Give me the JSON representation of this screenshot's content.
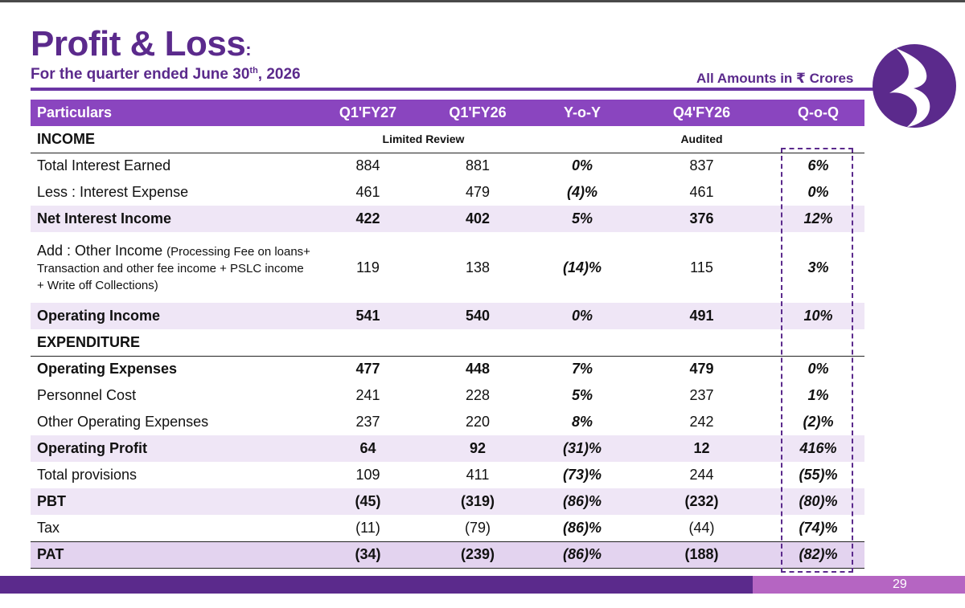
{
  "header": {
    "title": "Profit & Loss",
    "title_colon": ":",
    "subtitle_pre": "For the quarter ended June 30",
    "subtitle_sup": "th",
    "subtitle_post": ", 2026",
    "amounts_note": "All Amounts in ₹ Crores"
  },
  "colors": {
    "brand_purple": "#5b2a8c",
    "header_purple": "#8a45bf",
    "row_shade": "#efe6f6",
    "footer_accent": "#b565c2"
  },
  "table": {
    "columns": [
      "Particulars",
      "Q1'FY27",
      "Q1'FY26",
      "Y-o-Y",
      "Q4'FY26",
      "Q-o-Q"
    ],
    "income_label": "INCOME",
    "limited_review": "Limited Review",
    "audited": "Audited",
    "expenditure_label": "EXPENDITURE",
    "rows": {
      "total_interest_earned": {
        "label": "Total Interest Earned",
        "q1fy27": "884",
        "q1fy26": "881",
        "yoy": "0%",
        "q4fy26": "837",
        "qoq": "6%"
      },
      "interest_expense": {
        "label": "Less : Interest Expense",
        "q1fy27": "461",
        "q1fy26": "479",
        "yoy": "(4)%",
        "q4fy26": "461",
        "qoq": "0%"
      },
      "net_interest_income": {
        "label": "Net Interest Income",
        "q1fy27": "422",
        "q1fy26": "402",
        "yoy": "5%",
        "q4fy26": "376",
        "qoq": "12%"
      },
      "other_income": {
        "label": "Add : Other Income",
        "label_detail": "(Processing Fee on loans+ Transaction and other fee income + PSLC income + Write off Collections)",
        "q1fy27": "119",
        "q1fy26": "138",
        "yoy": "(14)%",
        "q4fy26": "115",
        "qoq": "3%"
      },
      "operating_income": {
        "label": "Operating Income",
        "q1fy27": "541",
        "q1fy26": "540",
        "yoy": "0%",
        "q4fy26": "491",
        "qoq": "10%"
      },
      "operating_expenses": {
        "label": "Operating Expenses",
        "q1fy27": "477",
        "q1fy26": "448",
        "yoy": "7%",
        "q4fy26": "479",
        "qoq": "0%"
      },
      "personnel_cost": {
        "label": "Personnel Cost",
        "q1fy27": "241",
        "q1fy26": "228",
        "yoy": "5%",
        "q4fy26": "237",
        "qoq": "1%"
      },
      "other_operating_expenses": {
        "label": "Other Operating Expenses",
        "q1fy27": "237",
        "q1fy26": "220",
        "yoy": "8%",
        "q4fy26": "242",
        "qoq": "(2)%"
      },
      "operating_profit": {
        "label": "Operating Profit",
        "q1fy27": "64",
        "q1fy26": "92",
        "yoy": "(31)%",
        "q4fy26": "12",
        "qoq": "416%"
      },
      "total_provisions": {
        "label": "Total provisions",
        "q1fy27": "109",
        "q1fy26": "411",
        "yoy": "(73)%",
        "q4fy26": "244",
        "qoq": "(55)%"
      },
      "pbt": {
        "label": "PBT",
        "q1fy27": "(45)",
        "q1fy26": "(319)",
        "yoy": "(86)%",
        "q4fy26": "(232)",
        "qoq": "(80)%"
      },
      "tax": {
        "label": "Tax",
        "q1fy27": "(11)",
        "q1fy26": "(79)",
        "yoy": "(86)%",
        "q4fy26": "(44)",
        "qoq": "(74)%"
      },
      "pat": {
        "label": "PAT",
        "q1fy27": "(34)",
        "q1fy26": "(239)",
        "yoy": "(86)%",
        "q4fy26": "(188)",
        "qoq": "(82)%"
      }
    }
  },
  "footer": {
    "page_number": "29"
  },
  "logo": {
    "icon": "bank-logo-icon"
  }
}
